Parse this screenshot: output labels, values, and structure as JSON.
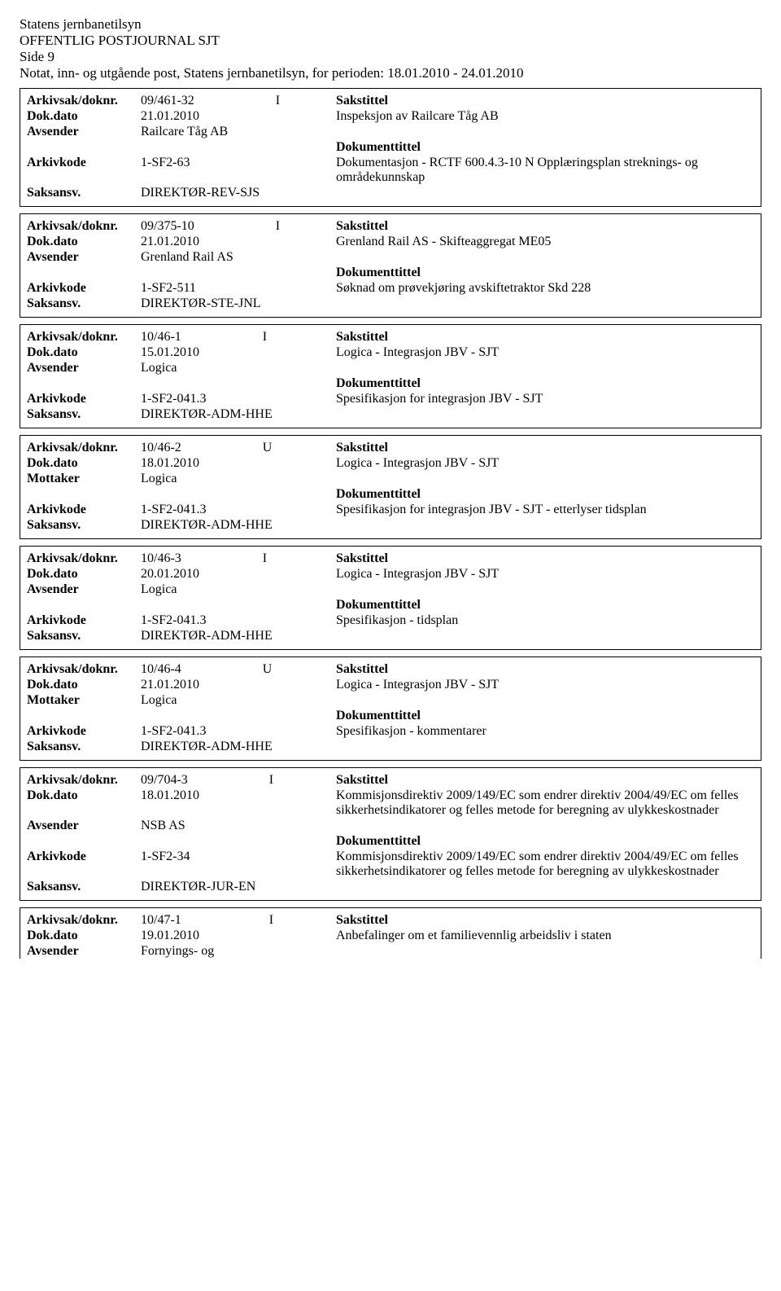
{
  "header": {
    "line1": "Statens jernbanetilsyn",
    "line2": "OFFENTLIG POSTJOURNAL SJT",
    "line3": "Side 9",
    "line4": "Notat, inn- og utgående post, Statens jernbanetilsyn, for perioden: 18.01.2010 - 24.01.2010"
  },
  "labels": {
    "arkivsak": "Arkivsak/doknr.",
    "dokdato": "Dok.dato",
    "avsender": "Avsender",
    "mottaker": "Mottaker",
    "arkivkode": "Arkivkode",
    "saksansv": "Saksansv.",
    "sakstittel": "Sakstittel",
    "dokumenttittel": "Dokumenttittel"
  },
  "entries": [
    {
      "arkivsak": "09/461-32",
      "dir": "I",
      "dokdato": "21.01.2010",
      "party_label": "Avsender",
      "party": "Railcare Tåg AB",
      "arkivkode": "1-SF2-63",
      "saksansv": "DIREKTØR-REV-SJS",
      "sakstittel": "Inspeksjon av Railcare Tåg AB",
      "dokumenttittel": "Dokumentasjon - RCTF 600.4.3-10 N Opplæringsplan streknings- og områdekunnskap"
    },
    {
      "arkivsak": "09/375-10",
      "dir": "I",
      "dokdato": "21.01.2010",
      "party_label": "Avsender",
      "party": "Grenland Rail AS",
      "arkivkode": "1-SF2-511",
      "saksansv": "DIREKTØR-STE-JNL",
      "sakstittel": "Grenland Rail AS - Skifteaggregat ME05",
      "dokumenttittel": "Søknad om prøvekjøring avskiftetraktor Skd 228"
    },
    {
      "arkivsak": "10/46-1",
      "dir": "I",
      "dokdato": "15.01.2010",
      "party_label": "Avsender",
      "party": "Logica",
      "arkivkode": "1-SF2-041.3",
      "saksansv": "DIREKTØR-ADM-HHE",
      "sakstittel": "Logica - Integrasjon JBV - SJT",
      "dokumenttittel": "Spesifikasjon for integrasjon JBV - SJT"
    },
    {
      "arkivsak": "10/46-2",
      "dir": "U",
      "dokdato": "18.01.2010",
      "party_label": "Mottaker",
      "party": "Logica",
      "arkivkode": "1-SF2-041.3",
      "saksansv": "DIREKTØR-ADM-HHE",
      "sakstittel": "Logica - Integrasjon JBV - SJT",
      "dokumenttittel": "Spesifikasjon for integrasjon JBV - SJT - etterlyser tidsplan"
    },
    {
      "arkivsak": "10/46-3",
      "dir": "I",
      "dokdato": "20.01.2010",
      "party_label": "Avsender",
      "party": "Logica",
      "arkivkode": "1-SF2-041.3",
      "saksansv": "DIREKTØR-ADM-HHE",
      "sakstittel": "Logica - Integrasjon JBV - SJT",
      "dokumenttittel": "Spesifikasjon - tidsplan"
    },
    {
      "arkivsak": "10/46-4",
      "dir": "U",
      "dokdato": "21.01.2010",
      "party_label": "Mottaker",
      "party": "Logica",
      "arkivkode": "1-SF2-041.3",
      "saksansv": "DIREKTØR-ADM-HHE",
      "sakstittel": "Logica - Integrasjon JBV - SJT",
      "dokumenttittel": "Spesifikasjon - kommentarer"
    },
    {
      "arkivsak": "09/704-3",
      "dir": "I",
      "dokdato": "18.01.2010",
      "party_label": "Avsender",
      "party": "NSB AS",
      "arkivkode": "1-SF2-34",
      "saksansv": "DIREKTØR-JUR-EN",
      "sakstittel": "Kommisjonsdirektiv 2009/149/EC som endrer direktiv 2004/49/EC om felles sikkerhetsindikatorer og felles metode for beregning av ulykkeskostnader",
      "dokumenttittel": "Kommisjonsdirektiv 2009/149/EC som endrer direktiv 2004/49/EC om felles sikkerhetsindikatorer og felles metode for beregning av ulykkeskostnader"
    }
  ],
  "partial": {
    "arkivsak": "10/47-1",
    "dir": "I",
    "dokdato": "19.01.2010",
    "party_label": "Avsender",
    "party": "Fornyings- og",
    "sakstittel": "Anbefalinger om et familievennlig arbeidsliv i staten"
  }
}
